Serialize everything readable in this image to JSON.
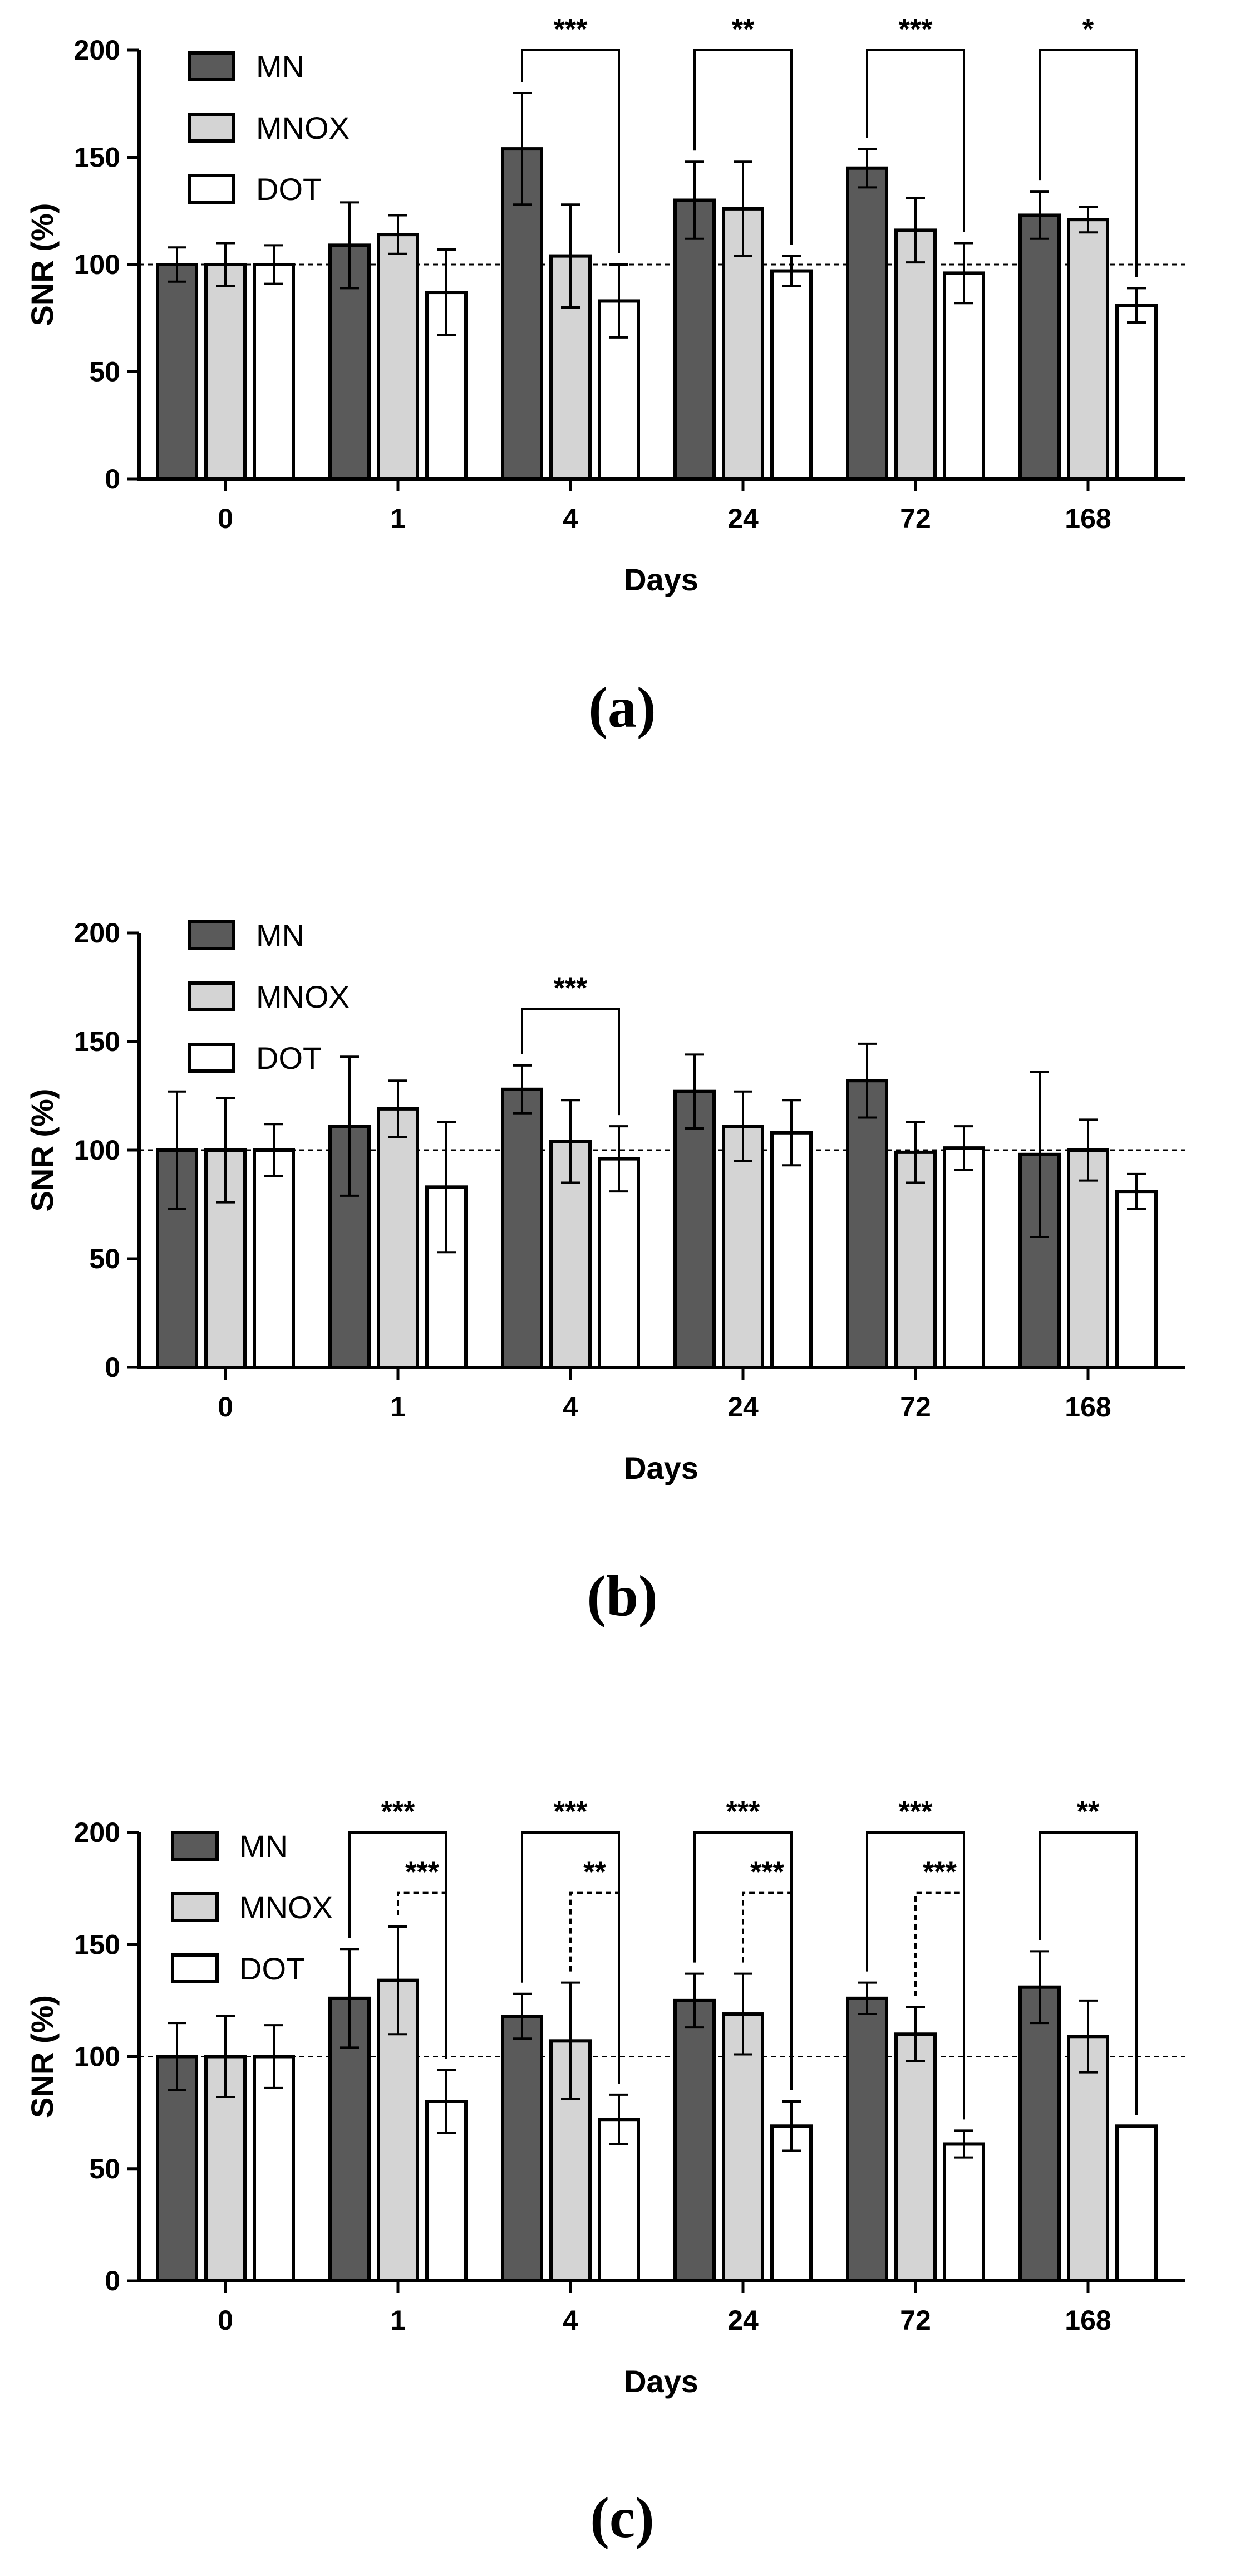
{
  "colors": {
    "MN": "#5a5a5a",
    "MNOX": "#d4d4d4",
    "DOT": "#ffffff",
    "stroke": "#000000"
  },
  "chart_data": [
    {
      "type": "bar",
      "panel_label": "(a)",
      "title": "",
      "xlabel": "Days",
      "ylabel": "SNR (%)",
      "ylim": [
        0,
        200
      ],
      "yticks": [
        "0",
        "50",
        "100",
        "150",
        "200"
      ],
      "reference_line": 100,
      "legend": [
        "MN",
        "MNOX",
        "DOT"
      ],
      "categories": [
        "0",
        "1",
        "4",
        "24",
        "72",
        "168"
      ],
      "series": [
        {
          "name": "MN",
          "values": [
            100,
            109,
            154,
            130,
            145,
            123
          ],
          "errors": [
            8,
            20,
            26,
            18,
            9,
            11
          ]
        },
        {
          "name": "MNOX",
          "values": [
            100,
            114,
            104,
            126,
            116,
            121
          ],
          "errors": [
            10,
            9,
            24,
            22,
            15,
            6
          ]
        },
        {
          "name": "DOT",
          "values": [
            100,
            87,
            83,
            97,
            96,
            81
          ],
          "errors": [
            9,
            20,
            17,
            7,
            14,
            8
          ]
        }
      ],
      "significance": [
        {
          "group": 2,
          "from": "MN",
          "to": "DOT",
          "label": "***",
          "style": "solid",
          "level": 200
        },
        {
          "group": 3,
          "from": "MN",
          "to": "DOT",
          "label": "**",
          "style": "solid",
          "level": 200
        },
        {
          "group": 4,
          "from": "MN",
          "to": "DOT",
          "label": "***",
          "style": "solid",
          "level": 200
        },
        {
          "group": 5,
          "from": "MN",
          "to": "DOT",
          "label": "*",
          "style": "solid",
          "level": 200
        }
      ]
    },
    {
      "type": "bar",
      "panel_label": "(b)",
      "title": "",
      "xlabel": "Days",
      "ylabel": "SNR (%)",
      "ylim": [
        0,
        200
      ],
      "yticks": [
        "0",
        "50",
        "100",
        "150",
        "200"
      ],
      "reference_line": 100,
      "legend": [
        "MN",
        "MNOX",
        "DOT"
      ],
      "categories": [
        "0",
        "1",
        "4",
        "24",
        "72",
        "168"
      ],
      "series": [
        {
          "name": "MN",
          "values": [
            100,
            111,
            128,
            127,
            132,
            98
          ],
          "errors": [
            27,
            32,
            11,
            17,
            17,
            38
          ]
        },
        {
          "name": "MNOX",
          "values": [
            100,
            119,
            104,
            111,
            99,
            100
          ],
          "errors": [
            24,
            13,
            19,
            16,
            14,
            14
          ]
        },
        {
          "name": "DOT",
          "values": [
            100,
            83,
            96,
            108,
            101,
            81
          ],
          "errors": [
            12,
            30,
            15,
            15,
            10,
            8
          ]
        }
      ],
      "significance": [
        {
          "group": 2,
          "from": "MN",
          "to": "DOT",
          "label": "***",
          "style": "solid",
          "level": 165
        }
      ]
    },
    {
      "type": "bar",
      "panel_label": "(c)",
      "title": "",
      "xlabel": "Days",
      "ylabel": "SNR (%)",
      "ylim": [
        0,
        200
      ],
      "yticks": [
        "0",
        "50",
        "100",
        "150",
        "200"
      ],
      "reference_line": 100,
      "legend": [
        "MN",
        "MNOX",
        "DOT"
      ],
      "categories": [
        "0",
        "1",
        "4",
        "24",
        "72",
        "168"
      ],
      "series": [
        {
          "name": "MN",
          "values": [
            100,
            126,
            118,
            125,
            126,
            131
          ],
          "errors": [
            15,
            22,
            10,
            12,
            7,
            16
          ]
        },
        {
          "name": "MNOX",
          "values": [
            100,
            134,
            107,
            119,
            110,
            109
          ],
          "errors": [
            18,
            24,
            26,
            18,
            12,
            16
          ]
        },
        {
          "name": "DOT",
          "values": [
            100,
            80,
            72,
            69,
            61,
            69
          ],
          "errors": [
            14,
            14,
            11,
            11,
            6,
            0
          ]
        }
      ],
      "significance": [
        {
          "group": 1,
          "from": "MN",
          "to": "DOT",
          "label": "***",
          "style": "solid",
          "level": 200
        },
        {
          "group": 1,
          "from": "MNOX",
          "to": "DOT",
          "label": "***",
          "style": "dashed",
          "level": 173
        },
        {
          "group": 2,
          "from": "MN",
          "to": "DOT",
          "label": "***",
          "style": "solid",
          "level": 200
        },
        {
          "group": 2,
          "from": "MNOX",
          "to": "DOT",
          "label": "**",
          "style": "dashed",
          "level": 173
        },
        {
          "group": 3,
          "from": "MN",
          "to": "DOT",
          "label": "***",
          "style": "solid",
          "level": 200
        },
        {
          "group": 3,
          "from": "MNOX",
          "to": "DOT",
          "label": "***",
          "style": "dashed",
          "level": 173
        },
        {
          "group": 4,
          "from": "MN",
          "to": "DOT",
          "label": "***",
          "style": "solid",
          "level": 200
        },
        {
          "group": 4,
          "from": "MNOX",
          "to": "DOT",
          "label": "***",
          "style": "dashed",
          "level": 173
        },
        {
          "group": 5,
          "from": "MN",
          "to": "DOT",
          "label": "**",
          "style": "solid",
          "level": 200
        }
      ]
    }
  ]
}
